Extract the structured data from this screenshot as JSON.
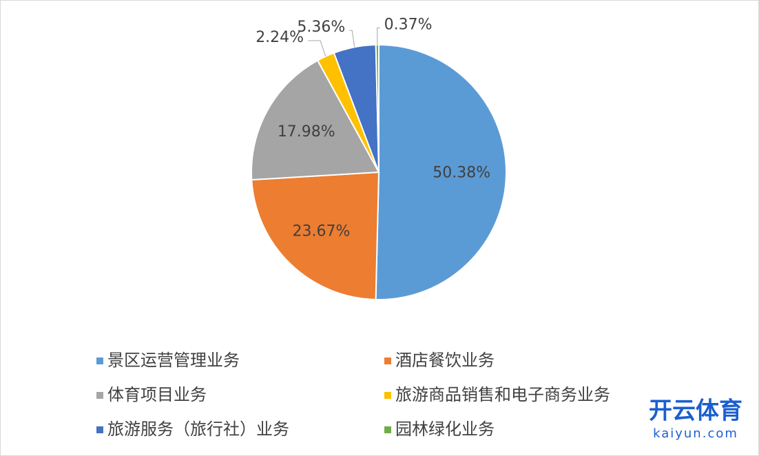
{
  "chart_data": {
    "type": "pie",
    "categories": [
      "景区运营管理业务",
      "酒店餐饮业务",
      "体育项目业务",
      "旅游商品销售和电子商务业务",
      "旅游服务（旅行社）业务",
      "园林绿化业务"
    ],
    "values": [
      50.38,
      23.67,
      17.98,
      2.24,
      5.36,
      0.37
    ],
    "value_labels": [
      "50.38%",
      "23.67%",
      "17.98%",
      "2.24%",
      "5.36%",
      "0.37%"
    ],
    "colors": [
      "#5b9bd5",
      "#ed7d31",
      "#a5a5a5",
      "#ffc000",
      "#4472c4",
      "#70ad47"
    ],
    "watermark": [
      "开云体育",
      "kaiyun.com"
    ]
  }
}
